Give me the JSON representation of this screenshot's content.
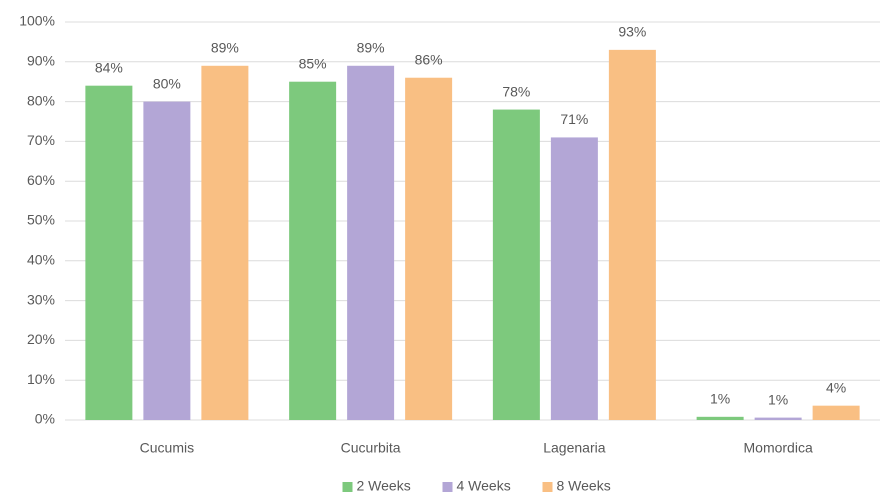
{
  "chart_data": {
    "type": "bar",
    "categories": [
      "Cucumis",
      "Cucurbita",
      "Lagenaria",
      "Momordica"
    ],
    "series": [
      {
        "name": "2 Weeks",
        "color": "#7dc97d",
        "values": [
          84,
          85,
          78,
          0.8
        ],
        "value_labels": [
          "84%",
          "85%",
          "78%",
          "1%"
        ]
      },
      {
        "name": "4 Weeks",
        "color": "#b3a6d6",
        "values": [
          80,
          89,
          71,
          0.6
        ],
        "value_labels": [
          "80%",
          "89%",
          "71%",
          "1%"
        ]
      },
      {
        "name": "8 Weeks",
        "color": "#f9bf83",
        "values": [
          89,
          86,
          93,
          3.6
        ],
        "value_labels": [
          "89%",
          "86%",
          "93%",
          "4%"
        ]
      }
    ],
    "ylim": [
      0,
      100
    ],
    "yticks": [
      {
        "value": 0,
        "label": "0%"
      },
      {
        "value": 10,
        "label": "10%"
      },
      {
        "value": 20,
        "label": "20%"
      },
      {
        "value": 30,
        "label": "30%"
      },
      {
        "value": 40,
        "label": "40%"
      },
      {
        "value": 50,
        "label": "50%"
      },
      {
        "value": 60,
        "label": "60%"
      },
      {
        "value": 70,
        "label": "70%"
      },
      {
        "value": 80,
        "label": "80%"
      },
      {
        "value": 90,
        "label": "90%"
      },
      {
        "value": 100,
        "label": "100%"
      }
    ],
    "grid": true,
    "legend": "bottom"
  }
}
